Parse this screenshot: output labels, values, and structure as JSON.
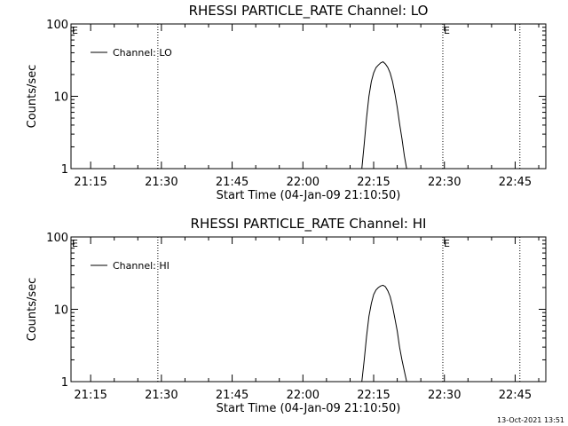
{
  "chart_data": [
    {
      "type": "line",
      "title": "RHESSI PARTICLE_RATE Channel: LO",
      "xlabel": "Start Time (04-Jan-09 21:10:50)",
      "ylabel": "Counts/sec",
      "y_scale": "log",
      "ylim": [
        1,
        100
      ],
      "yticks": [
        1,
        10,
        100
      ],
      "ytick_labels": [
        "1",
        "10",
        "100"
      ],
      "xlim": [
        "21:10:50",
        "22:51:30"
      ],
      "xticks": [
        "21:15",
        "21:30",
        "21:45",
        "22:00",
        "22:15",
        "22:30",
        "22:45"
      ],
      "grid": false,
      "legend_position": "top-left",
      "series": [
        {
          "name": "Channel: LO",
          "x": [
            "22:12:30",
            "22:13:00",
            "22:13:30",
            "22:14:00",
            "22:14:30",
            "22:15:00",
            "22:15:30",
            "22:16:00",
            "22:16:30",
            "22:17:00",
            "22:17:30",
            "22:18:00",
            "22:18:30",
            "22:19:00",
            "22:19:30",
            "22:20:00",
            "22:20:30",
            "22:21:00",
            "22:21:30",
            "22:22:00"
          ],
          "y": [
            1,
            2.2,
            5,
            10,
            16,
            21,
            25,
            27,
            29,
            30,
            28,
            25,
            21,
            16,
            11,
            7,
            4.2,
            2.6,
            1.5,
            1
          ]
        }
      ],
      "markers": [
        {
          "time": "21:29:15",
          "label": ""
        },
        {
          "time": "22:29:40",
          "label": "E"
        },
        {
          "time": "22:46:00",
          "label": ""
        }
      ],
      "corner_labels": [
        "E"
      ]
    },
    {
      "type": "line",
      "title": "RHESSI PARTICLE_RATE Channel: HI",
      "xlabel": "Start Time (04-Jan-09 21:10:50)",
      "ylabel": "Counts/sec",
      "y_scale": "log",
      "ylim": [
        1,
        100
      ],
      "yticks": [
        1,
        10,
        100
      ],
      "ytick_labels": [
        "1",
        "10",
        "100"
      ],
      "xlim": [
        "21:10:50",
        "22:51:30"
      ],
      "xticks": [
        "21:15",
        "21:30",
        "21:45",
        "22:00",
        "22:15",
        "22:30",
        "22:45"
      ],
      "grid": false,
      "legend_position": "top-left",
      "series": [
        {
          "name": "Channel: HI",
          "x": [
            "22:12:30",
            "22:13:00",
            "22:13:30",
            "22:14:00",
            "22:14:30",
            "22:15:00",
            "22:15:30",
            "22:16:00",
            "22:16:30",
            "22:17:00",
            "22:17:30",
            "22:18:00",
            "22:18:30",
            "22:19:00",
            "22:19:30",
            "22:20:00",
            "22:20:30",
            "22:21:00",
            "22:21:30",
            "22:22:00"
          ],
          "y": [
            1,
            2,
            4.2,
            8,
            12,
            16,
            18.5,
            20,
            21,
            21.5,
            20.5,
            18,
            15,
            11,
            7.5,
            5,
            3,
            2,
            1.4,
            1
          ]
        }
      ],
      "markers": [
        {
          "time": "21:29:15",
          "label": ""
        },
        {
          "time": "22:29:40",
          "label": "E"
        },
        {
          "time": "22:46:00",
          "label": ""
        }
      ],
      "corner_labels": [
        "E"
      ]
    }
  ],
  "footer": {
    "timestamp": "13-Oct-2021 13:51"
  }
}
